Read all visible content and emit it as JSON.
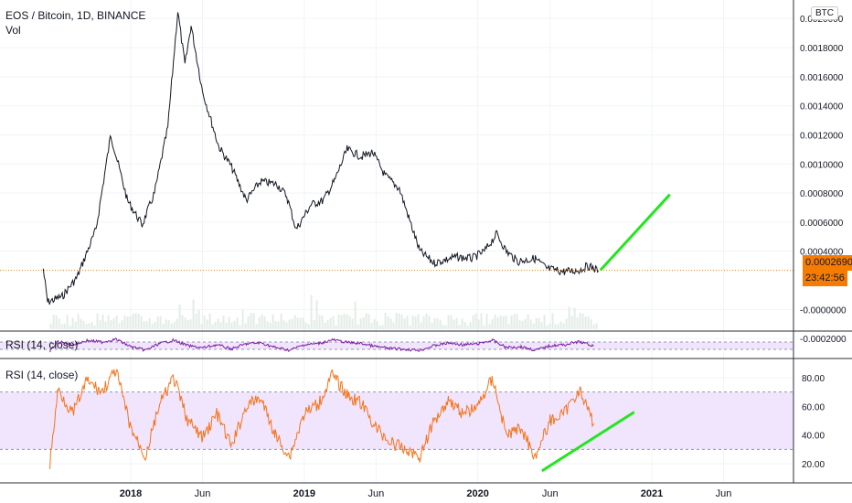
{
  "legend": {
    "symbol": "EOS / Bitcoin, 1D, BINANCE",
    "volume": "Vol"
  },
  "currency_button": "BTC",
  "last_price": "0.0002690",
  "countdown": "23:42:56",
  "rsi_small_label": "RSI (14, close)",
  "rsi_large_label": "RSI (14, close)",
  "colors": {
    "price_line": "#131722",
    "rsi_small": "#7b1fa2",
    "rsi_large": "#f5731a",
    "trendline": "#22e61e",
    "badge": "#f57c00",
    "rsi_band": "#f1e5fe"
  },
  "chart_data": [
    {
      "type": "line",
      "title": "EOS / Bitcoin, 1D, BINANCE",
      "y_ticks": [
        "0.0020000",
        "0.0018000",
        "0.0016000",
        "0.0014000",
        "0.0012000",
        "0.0010000",
        "0.0008000",
        "0.0006000",
        "0.0004000",
        "-0.0000000",
        "-0.0002000"
      ],
      "x_ticks": [
        "2018",
        "Jun",
        "2019",
        "Jun",
        "2020",
        "Jun",
        "2021",
        "Jun"
      ],
      "ylim": [
        -0.0002,
        0.0021
      ],
      "series": [
        {
          "values_by_date": [
            [
              "2017-07-01",
              0.00028
            ],
            [
              "2017-07-10",
              5e-05
            ],
            [
              "2017-08-10",
              9e-05
            ],
            [
              "2017-09-10",
              0.00022
            ],
            [
              "2017-10-20",
              0.00055
            ],
            [
              "2017-11-20",
              0.0012
            ],
            [
              "2017-12-25",
              0.00075
            ],
            [
              "2018-01-25",
              0.00058
            ],
            [
              "2018-02-20",
              0.0008
            ],
            [
              "2018-03-20",
              0.00125
            ],
            [
              "2018-04-10",
              0.00205
            ],
            [
              "2018-04-25",
              0.00168
            ],
            [
              "2018-05-08",
              0.00195
            ],
            [
              "2018-06-01",
              0.0015
            ],
            [
              "2018-07-05",
              0.00112
            ],
            [
              "2018-08-01",
              0.00098
            ],
            [
              "2018-09-01",
              0.00075
            ],
            [
              "2018-10-01",
              0.00088
            ],
            [
              "2018-11-05",
              0.00086
            ],
            [
              "2018-11-25",
              0.00078
            ],
            [
              "2018-12-15",
              0.00055
            ],
            [
              "2019-01-15",
              0.00072
            ],
            [
              "2019-02-10",
              0.00075
            ],
            [
              "2019-03-05",
              0.00088
            ],
            [
              "2019-04-01",
              0.0011
            ],
            [
              "2019-05-01",
              0.00105
            ],
            [
              "2019-05-25",
              0.00108
            ],
            [
              "2019-06-20",
              0.00092
            ],
            [
              "2019-07-20",
              0.00083
            ],
            [
              "2019-08-10",
              0.00062
            ],
            [
              "2019-09-01",
              0.0004
            ],
            [
              "2019-10-01",
              0.00032
            ],
            [
              "2019-11-15",
              0.00036
            ],
            [
              "2019-12-20",
              0.00035
            ],
            [
              "2020-01-15",
              0.0004
            ],
            [
              "2020-02-10",
              0.00052
            ],
            [
              "2020-03-01",
              0.0004
            ],
            [
              "2020-03-25",
              0.00033
            ],
            [
              "2020-05-01",
              0.00035
            ],
            [
              "2020-05-25",
              0.00028
            ],
            [
              "2020-07-01",
              0.00026
            ],
            [
              "2020-08-01",
              0.00027
            ],
            [
              "2020-08-20",
              0.0003
            ],
            [
              "2020-09-10",
              0.000269
            ]
          ]
        }
      ],
      "annotations": [
        {
          "type": "trendline",
          "from": [
            "2020-09-15",
            0.00027
          ],
          "to": [
            "2021-02-08",
            0.00079
          ]
        }
      ]
    },
    {
      "type": "line",
      "title": "RSI (14, close)",
      "y_ticks": [
        "80.00",
        "60.00",
        "40.00",
        "20.00"
      ],
      "ylim": [
        10,
        90
      ],
      "band": [
        30,
        70
      ],
      "series": [
        {
          "values_by_date": [
            [
              "2017-07-15",
              20
            ],
            [
              "2017-08-01",
              72
            ],
            [
              "2017-09-01",
              55
            ],
            [
              "2017-10-01",
              78
            ],
            [
              "2017-11-01",
              70
            ],
            [
              "2017-12-01",
              85
            ],
            [
              "2018-01-01",
              45
            ],
            [
              "2018-02-01",
              25
            ],
            [
              "2018-03-01",
              60
            ],
            [
              "2018-04-01",
              80
            ],
            [
              "2018-05-01",
              50
            ],
            [
              "2018-06-01",
              38
            ],
            [
              "2018-07-01",
              55
            ],
            [
              "2018-08-01",
              32
            ],
            [
              "2018-09-01",
              60
            ],
            [
              "2018-10-01",
              66
            ],
            [
              "2018-11-01",
              40
            ],
            [
              "2018-12-01",
              25
            ],
            [
              "2019-01-01",
              55
            ],
            [
              "2019-02-01",
              62
            ],
            [
              "2019-03-01",
              82
            ],
            [
              "2019-04-01",
              68
            ],
            [
              "2019-05-01",
              62
            ],
            [
              "2019-06-01",
              45
            ],
            [
              "2019-07-01",
              35
            ],
            [
              "2019-08-01",
              30
            ],
            [
              "2019-09-01",
              25
            ],
            [
              "2019-10-01",
              50
            ],
            [
              "2019-11-01",
              65
            ],
            [
              "2019-12-01",
              55
            ],
            [
              "2020-01-01",
              60
            ],
            [
              "2020-02-01",
              80
            ],
            [
              "2020-03-01",
              40
            ],
            [
              "2020-04-01",
              45
            ],
            [
              "2020-05-01",
              25
            ],
            [
              "2020-06-01",
              50
            ],
            [
              "2020-07-01",
              55
            ],
            [
              "2020-08-01",
              72
            ],
            [
              "2020-09-01",
              48
            ]
          ]
        }
      ],
      "annotations": [
        {
          "type": "trendline",
          "from": [
            "2020-05-15",
            15
          ],
          "to": [
            "2020-11-25",
            56
          ]
        }
      ]
    }
  ]
}
